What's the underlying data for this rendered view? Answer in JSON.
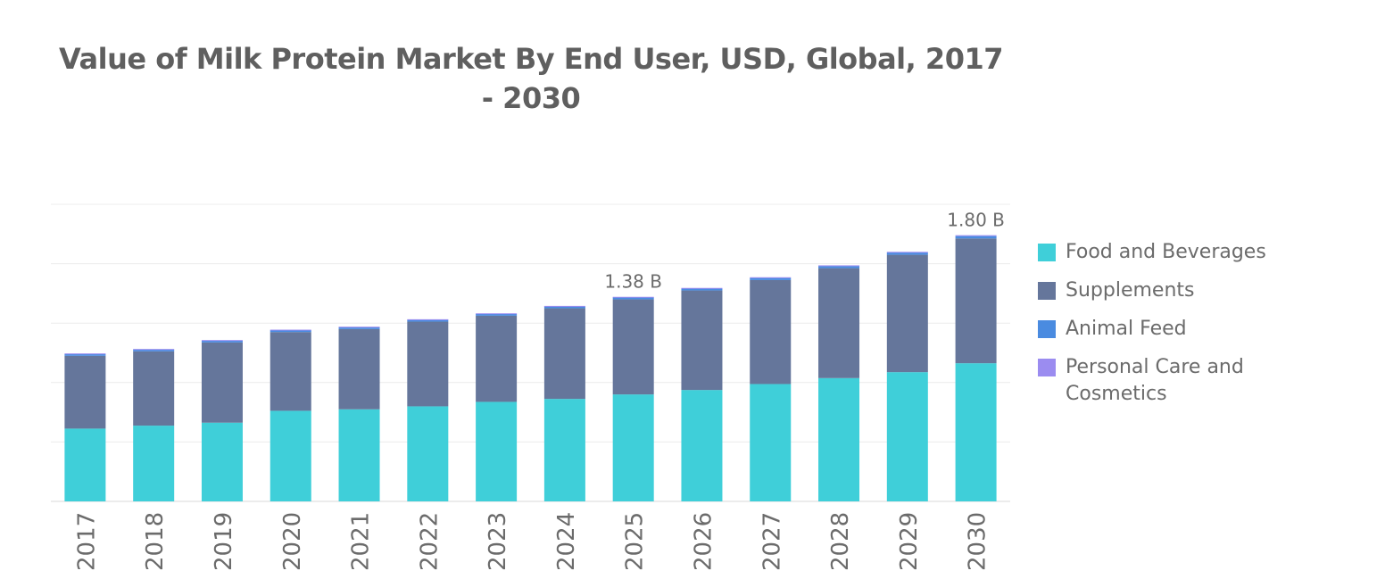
{
  "chart_data": {
    "type": "bar",
    "stacked": true,
    "title": "Value of Milk Protein Market By End User, USD, Global, 2017 - 2030",
    "xlabel": "",
    "ylabel": "",
    "ylim": [
      0,
      2.0
    ],
    "categories": [
      "2017",
      "2018",
      "2019",
      "2020",
      "2021",
      "2022",
      "2023",
      "2024",
      "2025",
      "2026",
      "2027",
      "2028",
      "2029",
      "2030"
    ],
    "series": [
      {
        "name": "Food and Beverages",
        "color": "#3fcfd9",
        "values": [
          0.49,
          0.51,
          0.53,
          0.61,
          0.62,
          0.64,
          0.67,
          0.69,
          0.72,
          0.75,
          0.79,
          0.83,
          0.87,
          0.93
        ]
      },
      {
        "name": "Supplements",
        "color": "#65769b",
        "values": [
          0.49,
          0.5,
          0.54,
          0.53,
          0.54,
          0.57,
          0.58,
          0.61,
          0.64,
          0.67,
          0.7,
          0.74,
          0.79,
          0.84
        ]
      },
      {
        "name": "Animal Feed",
        "color": "#4a8be0",
        "values": [
          0.012,
          0.012,
          0.012,
          0.012,
          0.012,
          0.012,
          0.012,
          0.012,
          0.013,
          0.013,
          0.014,
          0.014,
          0.015,
          0.016
        ]
      },
      {
        "name": "Personal Care and Cosmetics",
        "color": "#9b8cf0",
        "values": [
          0.004,
          0.004,
          0.004,
          0.004,
          0.004,
          0.004,
          0.004,
          0.004,
          0.004,
          0.004,
          0.005,
          0.005,
          0.005,
          0.006
        ]
      }
    ],
    "data_labels": [
      {
        "category": "2025",
        "text": "1.38 B"
      },
      {
        "category": "2030",
        "text": "1.80 B"
      }
    ],
    "grid": true,
    "legend_position": "right"
  }
}
